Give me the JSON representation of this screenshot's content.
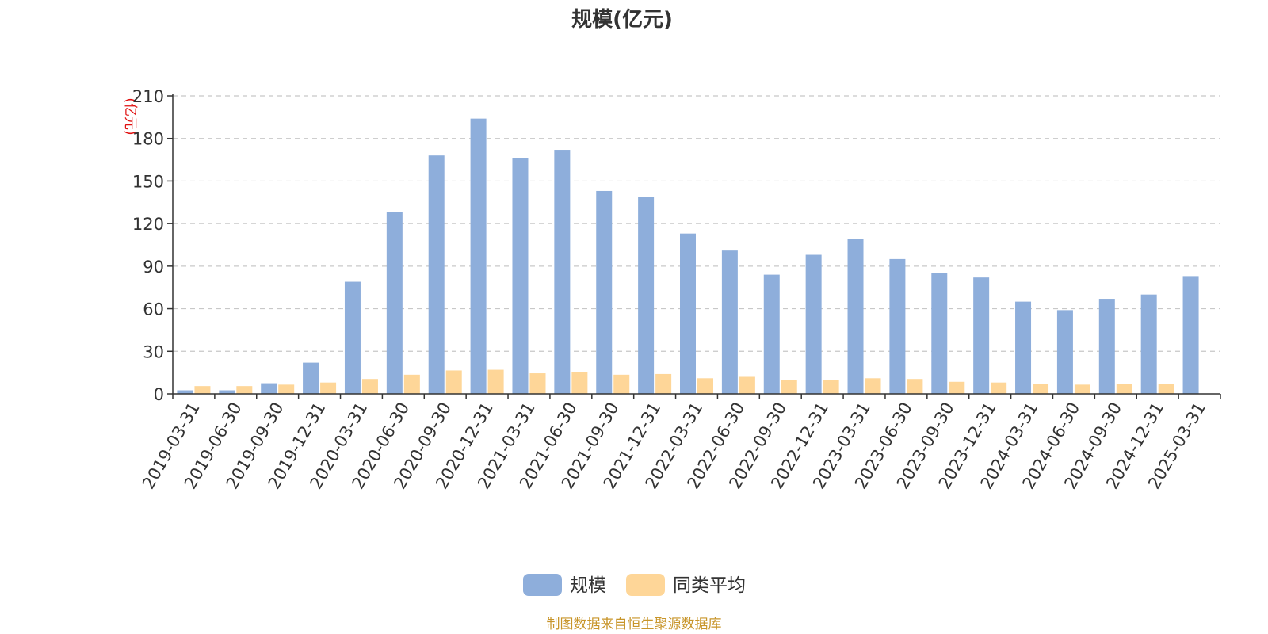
{
  "chart_data": {
    "type": "bar",
    "title": "规模(亿元)",
    "ylabel": "(亿元)",
    "ylim": [
      0,
      210
    ],
    "yticks": [
      0,
      30,
      60,
      90,
      120,
      150,
      180,
      210
    ],
    "grid": true,
    "legend_position": "bottom",
    "categories": [
      "2019-03-31",
      "2019-06-30",
      "2019-09-30",
      "2019-12-31",
      "2020-03-31",
      "2020-06-30",
      "2020-09-30",
      "2020-12-31",
      "2021-03-31",
      "2021-06-30",
      "2021-09-30",
      "2021-12-31",
      "2022-03-31",
      "2022-06-30",
      "2022-09-30",
      "2022-12-31",
      "2023-03-31",
      "2023-06-30",
      "2023-09-30",
      "2023-12-31",
      "2024-03-31",
      "2024-06-30",
      "2024-09-30",
      "2024-12-31",
      "2025-03-31"
    ],
    "series": [
      {
        "name": "规模",
        "color": "#8eaedb",
        "values": [
          2.5,
          2.5,
          7.5,
          22,
          79,
          128,
          168,
          194,
          166,
          172,
          143,
          139,
          113,
          101,
          84,
          98,
          109,
          95,
          85,
          82,
          65,
          59,
          67,
          70,
          83
        ]
      },
      {
        "name": "同类平均",
        "color": "#fed698",
        "values": [
          5.5,
          5.5,
          6.5,
          8,
          10.5,
          13.5,
          16.5,
          17,
          14.5,
          15.5,
          13.5,
          14,
          11,
          12,
          10,
          10,
          11,
          10.5,
          8.5,
          8,
          7,
          6.5,
          7,
          7,
          null
        ]
      }
    ]
  },
  "source_note": "制图数据来自恒生聚源数据库"
}
